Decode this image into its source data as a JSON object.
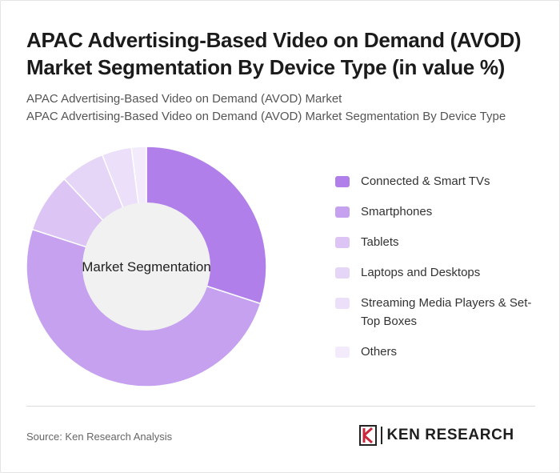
{
  "header": {
    "title": "APAC Advertising-Based Video on Demand (AVOD) Market Segmentation By Device Type (in value %)",
    "subtitle_line1": "APAC Advertising-Based Video on Demand (AVOD) Market",
    "subtitle_line2": "APAC Advertising-Based Video on Demand (AVOD) Market Segmentation By Device Type"
  },
  "chart_data": {
    "type": "pie",
    "donut": true,
    "center_label": "Market Segmentation",
    "categories": [
      "Connected & Smart TVs",
      "Smartphones",
      "Tablets",
      "Laptops and Desktops",
      "Streaming Media Players & Set-Top Boxes",
      "Others"
    ],
    "values": [
      30,
      50,
      8,
      6,
      4,
      2
    ],
    "colors": [
      "#b07fea",
      "#c5a1ef",
      "#dcc4f5",
      "#e5d5f7",
      "#ecdff9",
      "#f3ebfb"
    ],
    "legend_position": "right"
  },
  "footer": {
    "source": "Source: Ken Research Analysis",
    "brand": "KEN RESEARCH"
  }
}
